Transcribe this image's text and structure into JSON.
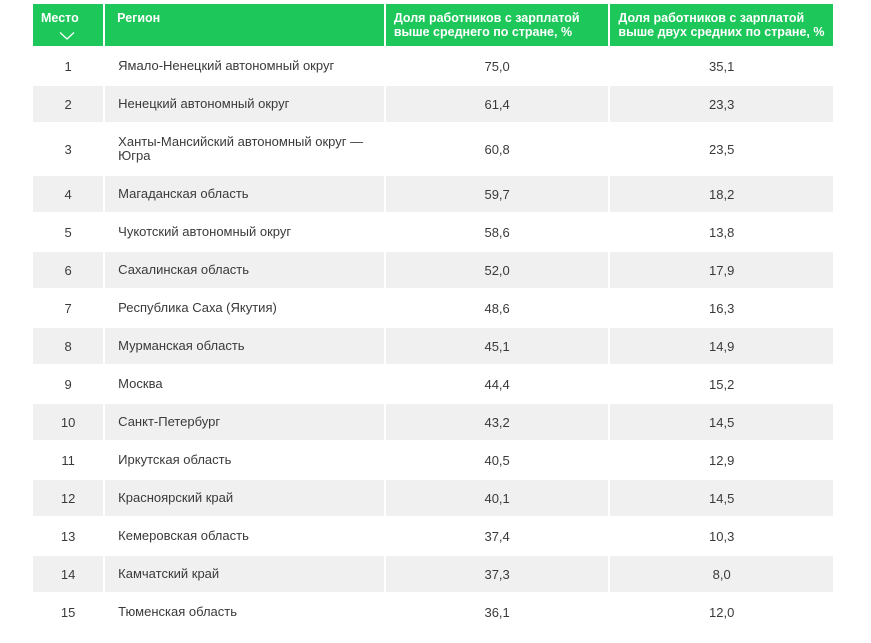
{
  "table": {
    "headers": {
      "place": "Место",
      "region": "Регион",
      "col3": "Доля работников с зарплатой выше среднего по стране, %",
      "col4": "Доля работников с зарплатой выше двух средних по стране, %"
    },
    "colors": {
      "header_bg": "#1dc75a",
      "header_text": "#ffffff",
      "row_shade": "#f0f0f0"
    },
    "sort_icon": "chevron-down-icon",
    "rows": [
      {
        "place": "1",
        "region": "Ямало-Ненецкий автономный округ",
        "above_avg": "75,0",
        "above_two_avg": "35,1"
      },
      {
        "place": "2",
        "region": "Ненецкий автономный округ",
        "above_avg": "61,4",
        "above_two_avg": "23,3"
      },
      {
        "place": "3",
        "region": "Ханты-Мансийский автономный округ — Югра",
        "above_avg": "60,8",
        "above_two_avg": "23,5"
      },
      {
        "place": "4",
        "region": "Магаданская область",
        "above_avg": "59,7",
        "above_two_avg": "18,2"
      },
      {
        "place": "5",
        "region": "Чукотский автономный округ",
        "above_avg": "58,6",
        "above_two_avg": "13,8"
      },
      {
        "place": "6",
        "region": "Сахалинская область",
        "above_avg": "52,0",
        "above_two_avg": "17,9"
      },
      {
        "place": "7",
        "region": "Республика Саха (Якутия)",
        "above_avg": "48,6",
        "above_two_avg": "16,3"
      },
      {
        "place": "8",
        "region": "Мурманская область",
        "above_avg": "45,1",
        "above_two_avg": "14,9"
      },
      {
        "place": "9",
        "region": "Москва",
        "above_avg": "44,4",
        "above_two_avg": "15,2"
      },
      {
        "place": "10",
        "region": "Санкт-Петербург",
        "above_avg": "43,2",
        "above_two_avg": "14,5"
      },
      {
        "place": "11",
        "region": "Иркутская область",
        "above_avg": "40,5",
        "above_two_avg": "12,9"
      },
      {
        "place": "12",
        "region": "Красноярский край",
        "above_avg": "40,1",
        "above_two_avg": "14,5"
      },
      {
        "place": "13",
        "region": "Кемеровская область",
        "above_avg": "37,4",
        "above_two_avg": "10,3"
      },
      {
        "place": "14",
        "region": "Камчатский край",
        "above_avg": "37,3",
        "above_two_avg": "8,0"
      },
      {
        "place": "15",
        "region": "Тюменская область",
        "above_avg": "36,1",
        "above_two_avg": "12,0"
      }
    ]
  }
}
